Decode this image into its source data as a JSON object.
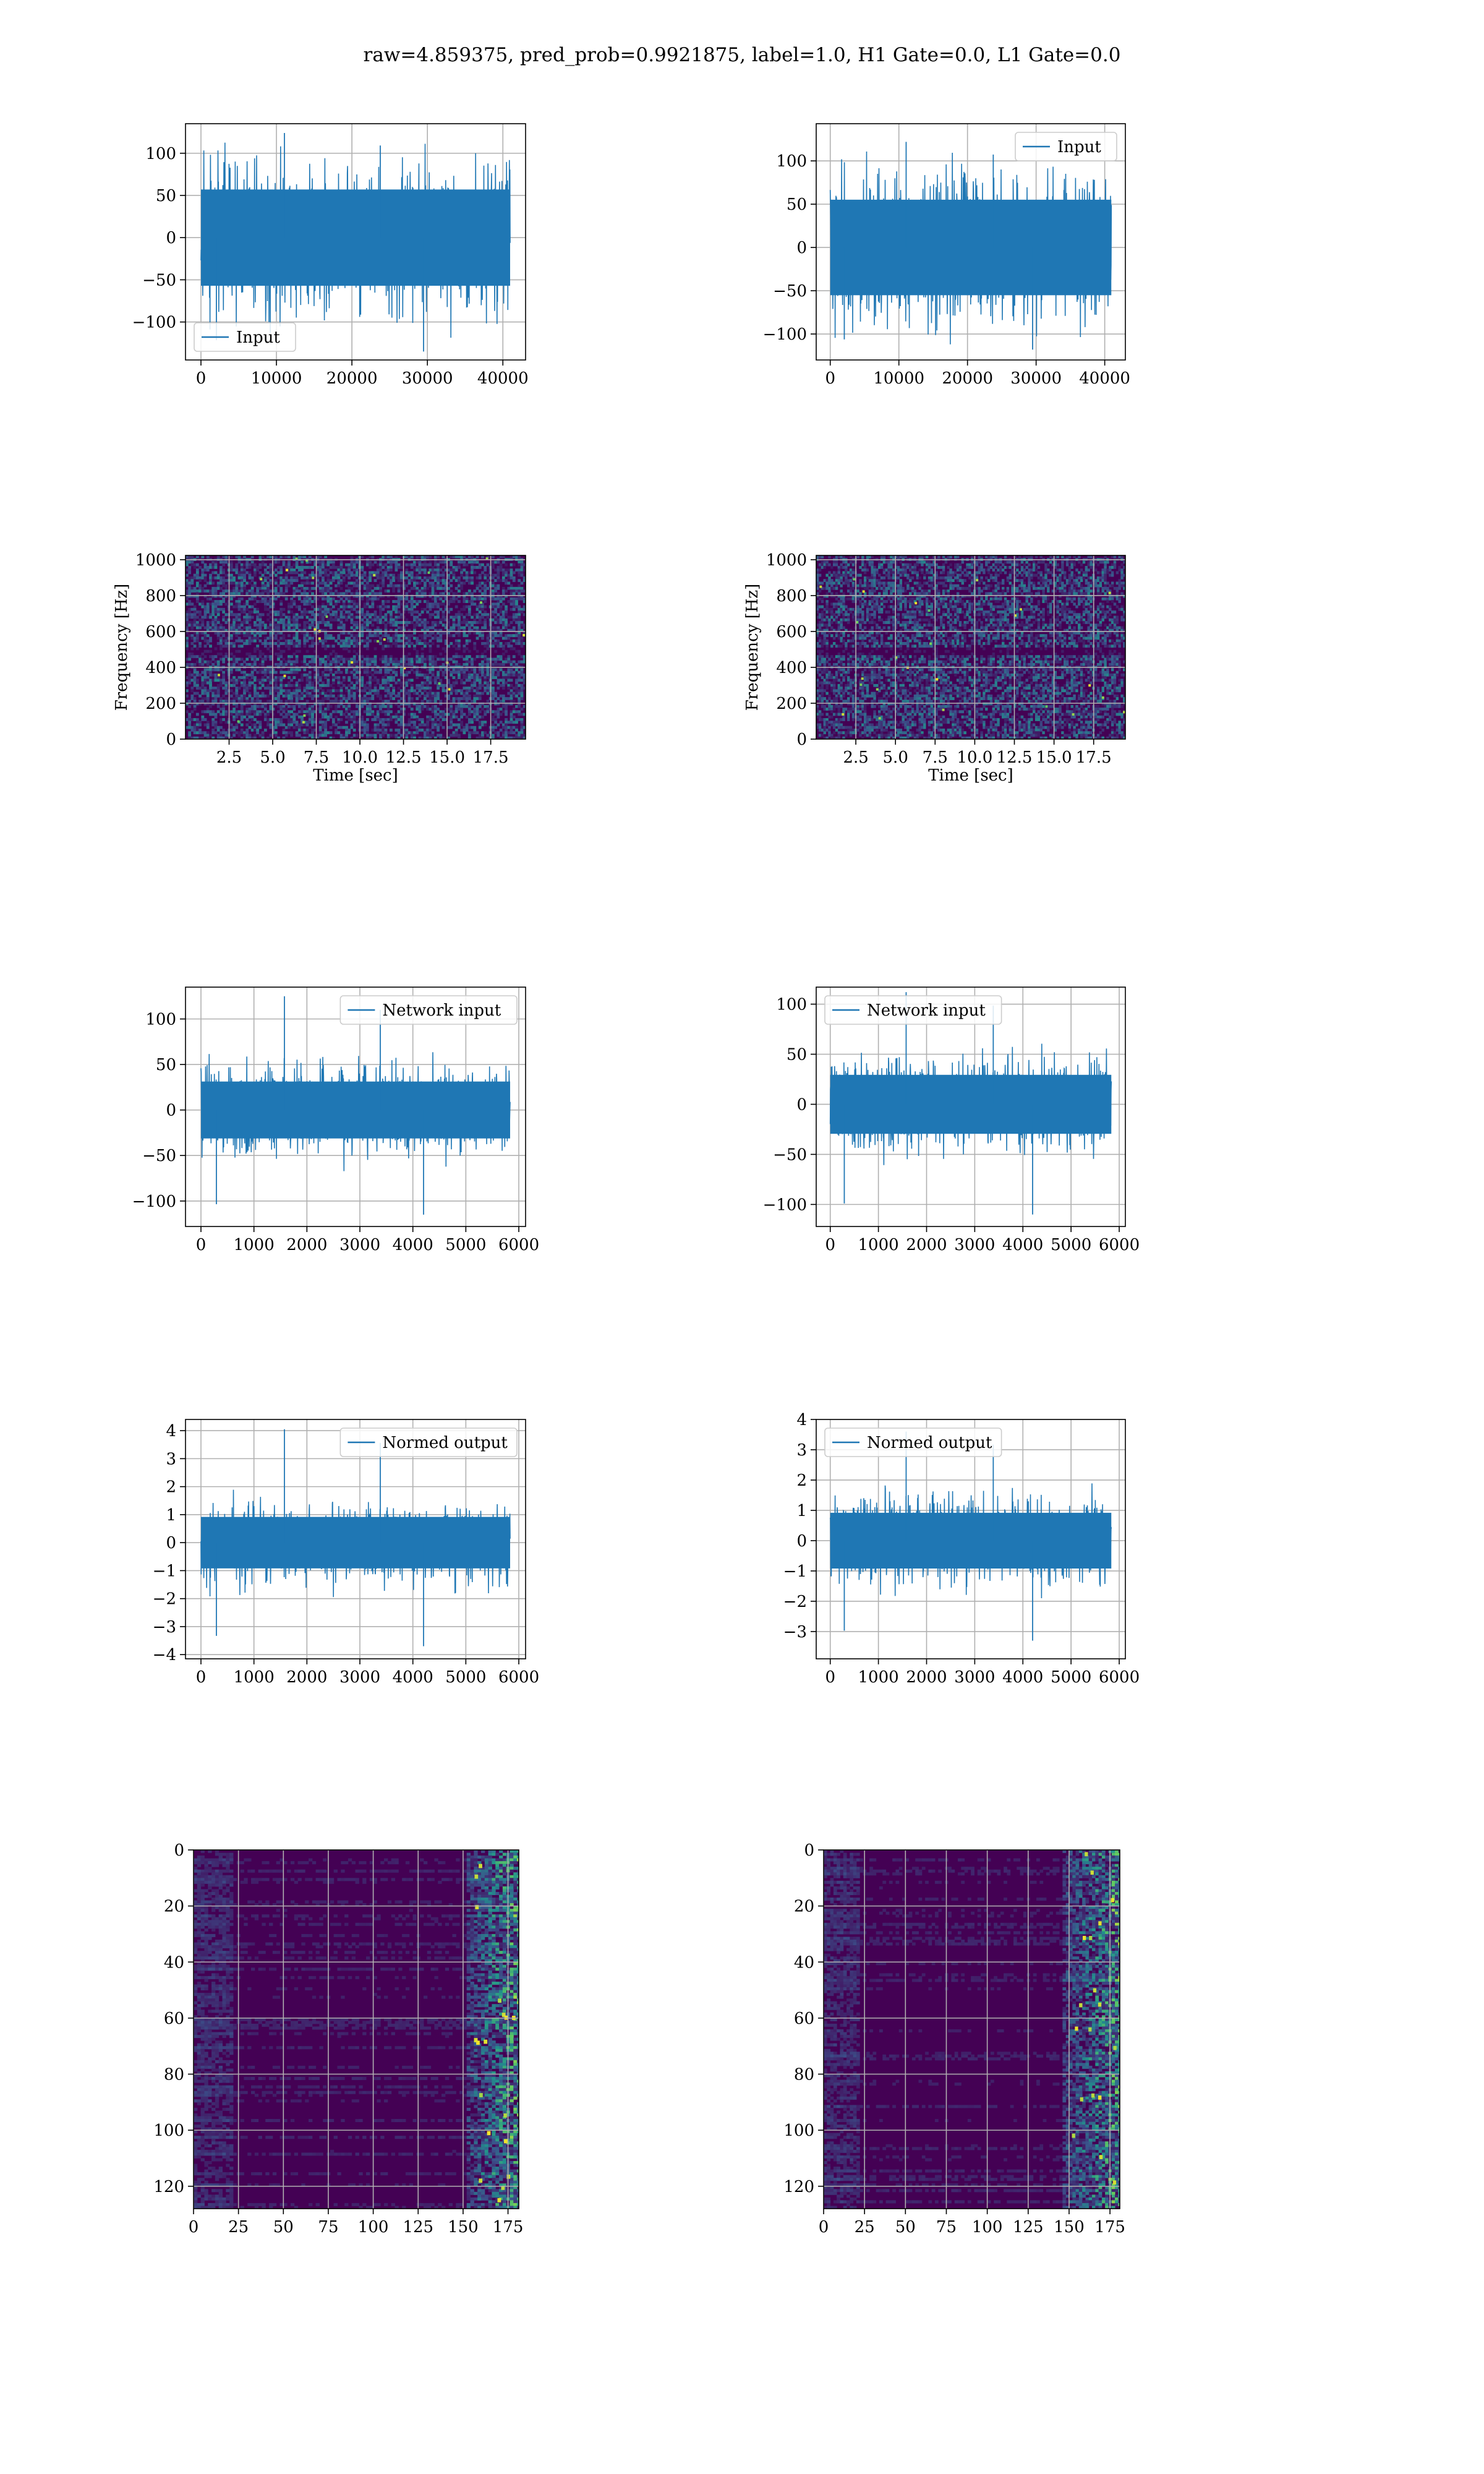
{
  "figure": {
    "title": "raw=4.859375, pred_prob=0.9921875, label=1.0, H1 Gate=0.0, L1 Gate=0.0"
  },
  "colors": {
    "line": "#1f77b4",
    "grid": "#b0b0b0",
    "axis": "#000000",
    "viridis_low": "#440154",
    "viridis_mid": "#21918c",
    "viridis_high": "#fde725"
  },
  "chart_data": [
    {
      "id": "h1-input",
      "type": "line",
      "legend": [
        "Input"
      ],
      "legend_loc": "lower left",
      "x_range": [
        0,
        40960
      ],
      "ylim": [
        -145,
        135
      ],
      "xticks": [
        0,
        10000,
        20000,
        30000,
        40000
      ],
      "xtick_labels": [
        "0",
        "10000",
        "20000",
        "30000",
        "40000"
      ],
      "yticks": [
        -100,
        -50,
        0,
        50,
        100
      ],
      "ytick_labels": [
        "−100",
        "−50",
        "0",
        "50",
        "100"
      ],
      "xlabel": "",
      "ylabel": "",
      "envelope": {
        "core": 62,
        "peak_max": 124,
        "peak_min": -135
      },
      "series_name": "Input",
      "grid": true
    },
    {
      "id": "l1-input",
      "type": "line",
      "legend": [
        "Input"
      ],
      "legend_loc": "upper right",
      "x_range": [
        0,
        40960
      ],
      "ylim": [
        -130,
        143
      ],
      "xticks": [
        0,
        10000,
        20000,
        30000,
        40000
      ],
      "xtick_labels": [
        "0",
        "10000",
        "20000",
        "30000",
        "40000"
      ],
      "yticks": [
        -100,
        -50,
        0,
        50,
        100
      ],
      "ytick_labels": [
        "−100",
        "−50",
        "0",
        "50",
        "100"
      ],
      "xlabel": "",
      "ylabel": "",
      "envelope": {
        "core": 60,
        "peak_max": 122,
        "peak_min": -118
      },
      "series_name": "Input",
      "grid": true
    },
    {
      "id": "h1-spectrogram",
      "type": "heatmap",
      "x_range": [
        0,
        19.5
      ],
      "ylim": [
        0,
        1024
      ],
      "xticks": [
        2.5,
        5.0,
        7.5,
        10.0,
        12.5,
        15.0,
        17.5
      ],
      "xtick_labels": [
        "2.5",
        "5.0",
        "7.5",
        "10.0",
        "12.5",
        "15.0",
        "17.5"
      ],
      "yticks": [
        0,
        200,
        400,
        600,
        800,
        1000
      ],
      "ytick_labels": [
        "0",
        "200",
        "400",
        "600",
        "800",
        "1000"
      ],
      "xlabel": "Time [sec]",
      "ylabel": "Frequency [Hz]",
      "grid": true,
      "style": "spectrogram"
    },
    {
      "id": "l1-spectrogram",
      "type": "heatmap",
      "x_range": [
        0,
        19.5
      ],
      "ylim": [
        0,
        1024
      ],
      "xticks": [
        2.5,
        5.0,
        7.5,
        10.0,
        12.5,
        15.0,
        17.5
      ],
      "xtick_labels": [
        "2.5",
        "5.0",
        "7.5",
        "10.0",
        "12.5",
        "15.0",
        "17.5"
      ],
      "yticks": [
        0,
        200,
        400,
        600,
        800,
        1000
      ],
      "ytick_labels": [
        "0",
        "200",
        "400",
        "600",
        "800",
        "1000"
      ],
      "xlabel": "Time [sec]",
      "ylabel": "Frequency [Hz]",
      "grid": true,
      "style": "spectrogram"
    },
    {
      "id": "h1-network-input",
      "type": "line",
      "legend": [
        "Network input"
      ],
      "legend_loc": "upper right",
      "x_range": [
        0,
        5836
      ],
      "ylim": [
        -128,
        135
      ],
      "xticks": [
        0,
        1000,
        2000,
        3000,
        4000,
        5000,
        6000
      ],
      "xtick_labels": [
        "0",
        "1000",
        "2000",
        "3000",
        "4000",
        "5000",
        "6000"
      ],
      "yticks": [
        -100,
        -50,
        0,
        50,
        100
      ],
      "ytick_labels": [
        "−100",
        "−50",
        "0",
        "50",
        "100"
      ],
      "xlabel": "",
      "ylabel": "",
      "envelope": {
        "core": 34,
        "peak_max": 125,
        "peak_min": -115
      },
      "series_name": "Network input",
      "grid": true
    },
    {
      "id": "l1-network-input",
      "type": "line",
      "legend": [
        "Network input"
      ],
      "legend_loc": "upper left",
      "x_range": [
        0,
        5836
      ],
      "ylim": [
        -122,
        117
      ],
      "xticks": [
        0,
        1000,
        2000,
        3000,
        4000,
        5000,
        6000
      ],
      "xtick_labels": [
        "0",
        "1000",
        "2000",
        "3000",
        "4000",
        "5000",
        "6000"
      ],
      "yticks": [
        -100,
        -50,
        0,
        50,
        100
      ],
      "ytick_labels": [
        "−100",
        "−50",
        "0",
        "50",
        "100"
      ],
      "xlabel": "",
      "ylabel": "",
      "envelope": {
        "core": 32,
        "peak_max": 112,
        "peak_min": -110
      },
      "series_name": "Network input",
      "grid": true
    },
    {
      "id": "h1-normed-output",
      "type": "line",
      "legend": [
        "Normed output"
      ],
      "legend_loc": "upper right",
      "x_range": [
        0,
        5836
      ],
      "ylim": [
        -4.15,
        4.4
      ],
      "xticks": [
        0,
        1000,
        2000,
        3000,
        4000,
        5000,
        6000
      ],
      "xtick_labels": [
        "0",
        "1000",
        "2000",
        "3000",
        "4000",
        "5000",
        "6000"
      ],
      "yticks": [
        -4,
        -3,
        -2,
        -1,
        0,
        1,
        2,
        3,
        4
      ],
      "ytick_labels": [
        "−4",
        "−3",
        "−2",
        "−1",
        "0",
        "1",
        "2",
        "3",
        "4"
      ],
      "xlabel": "",
      "ylabel": "",
      "envelope": {
        "core": 1.0,
        "peak_max": 4.05,
        "peak_min": -3.7
      },
      "series_name": "Normed output",
      "grid": true
    },
    {
      "id": "l1-normed-output",
      "type": "line",
      "legend": [
        "Normed output"
      ],
      "legend_loc": "upper left",
      "x_range": [
        0,
        5836
      ],
      "ylim": [
        -3.9,
        4.0
      ],
      "xticks": [
        0,
        1000,
        2000,
        3000,
        4000,
        5000,
        6000
      ],
      "xtick_labels": [
        "0",
        "1000",
        "2000",
        "3000",
        "4000",
        "5000",
        "6000"
      ],
      "yticks": [
        -3,
        -2,
        -1,
        0,
        1,
        2,
        3,
        4
      ],
      "ytick_labels": [
        "−3",
        "−2",
        "−1",
        "0",
        "1",
        "2",
        "3",
        "4"
      ],
      "xlabel": "",
      "ylabel": "",
      "envelope": {
        "core": 1.0,
        "peak_max": 3.6,
        "peak_min": -3.3
      },
      "series_name": "Normed output",
      "grid": true
    },
    {
      "id": "h1-feature-map",
      "type": "heatmap",
      "x_range": [
        0,
        181
      ],
      "ylim": [
        128,
        0
      ],
      "xticks": [
        0,
        25,
        50,
        75,
        100,
        125,
        150,
        175
      ],
      "xtick_labels": [
        "0",
        "25",
        "50",
        "75",
        "100",
        "125",
        "150",
        "175"
      ],
      "yticks": [
        0,
        20,
        40,
        60,
        80,
        100,
        120
      ],
      "ytick_labels": [
        "0",
        "20",
        "40",
        "60",
        "80",
        "100",
        "120"
      ],
      "xlabel": "",
      "ylabel": "",
      "grid": true,
      "style": "feature",
      "hot_start": 150
    },
    {
      "id": "l1-feature-map",
      "type": "heatmap",
      "x_range": [
        0,
        181
      ],
      "ylim": [
        128,
        0
      ],
      "xticks": [
        0,
        25,
        50,
        75,
        100,
        125,
        150,
        175
      ],
      "xtick_labels": [
        "0",
        "25",
        "50",
        "75",
        "100",
        "125",
        "150",
        "175"
      ],
      "yticks": [
        0,
        20,
        40,
        60,
        80,
        100,
        120
      ],
      "ytick_labels": [
        "0",
        "20",
        "40",
        "60",
        "80",
        "100",
        "120"
      ],
      "xlabel": "",
      "ylabel": "",
      "grid": true,
      "style": "feature",
      "hot_start": 145
    }
  ]
}
